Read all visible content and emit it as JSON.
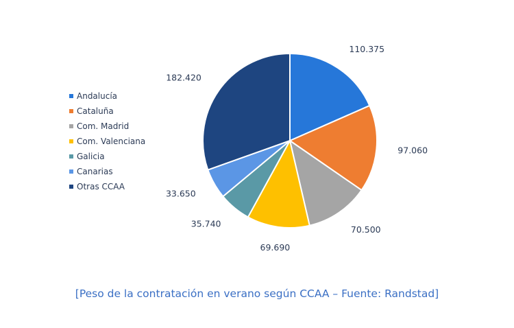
{
  "chart_data": {
    "type": "pie",
    "categories": [
      "Andalucía",
      "Cataluña",
      "Com. Madrid",
      "Com. Valenciana",
      "Galicia",
      "Canarias",
      "Otras CCAA"
    ],
    "values": [
      110375,
      97060,
      70500,
      69690,
      35740,
      33650,
      182420
    ],
    "data_labels": [
      "110.375",
      "97.060",
      "70.500",
      "69.690",
      "35.740",
      "33.650",
      "182.420"
    ],
    "colors": [
      "#2677d9",
      "#ee7d31",
      "#a5a5a5",
      "#fec000",
      "#5a99a6",
      "#5b96e5",
      "#1e4580"
    ],
    "legend_placement": "left"
  },
  "caption": "[Peso de la contratación en verano según CCAA – Fuente: Randstad]"
}
